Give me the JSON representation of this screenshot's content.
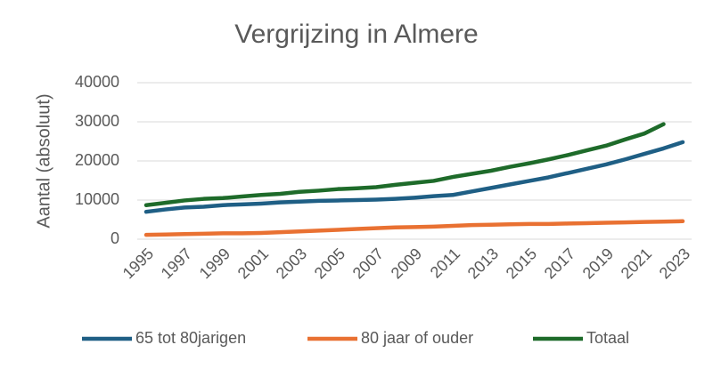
{
  "chart_data": {
    "type": "line",
    "title": "Vergrijzing in Almere",
    "y_label": "Aantal (absoluut)",
    "x": [
      1995,
      1996,
      1997,
      1998,
      1999,
      2000,
      2001,
      2002,
      2003,
      2004,
      2005,
      2006,
      2007,
      2008,
      2009,
      2010,
      2011,
      2012,
      2013,
      2014,
      2015,
      2016,
      2017,
      2018,
      2019,
      2020,
      2021,
      2022,
      2023
    ],
    "xlim": [
      1995,
      2023
    ],
    "xticks": [
      1995,
      1997,
      1999,
      2001,
      2003,
      2005,
      2007,
      2009,
      2011,
      2013,
      2015,
      2017,
      2019,
      2021,
      2023
    ],
    "ylim": [
      0,
      40000
    ],
    "yticks": [
      0,
      10000,
      20000,
      30000,
      40000
    ],
    "grid": true,
    "legend": "bottom",
    "series": [
      {
        "name": "65 tot 80jarigen",
        "color": "#1f5f85",
        "values": [
          7000,
          7600,
          8100,
          8300,
          8700,
          8900,
          9100,
          9400,
          9600,
          9800,
          9900,
          10000,
          10100,
          10300,
          10600,
          11000,
          11300,
          12200,
          13100,
          14000,
          14900,
          15800,
          16900,
          18000,
          19100,
          20400,
          21800,
          23200,
          24800
        ]
      },
      {
        "name": "80 jaar of ouder",
        "color": "#e97132",
        "values": [
          1100,
          1200,
          1300,
          1400,
          1500,
          1500,
          1600,
          1800,
          2000,
          2200,
          2400,
          2600,
          2800,
          3000,
          3100,
          3200,
          3400,
          3600,
          3700,
          3800,
          3900,
          3900,
          4000,
          4100,
          4200,
          4300,
          4400,
          4500,
          4600
        ]
      },
      {
        "name": "Totaal",
        "color": "#1e6b2a",
        "values": [
          8700,
          9300,
          9900,
          10300,
          10500,
          10900,
          11300,
          11600,
          12100,
          12400,
          12800,
          13000,
          13300,
          13900,
          14400,
          14900,
          15900,
          16700,
          17500,
          18500,
          19400,
          20400,
          21500,
          22700,
          23900,
          25500,
          27000,
          29400,
          null
        ]
      }
    ]
  }
}
